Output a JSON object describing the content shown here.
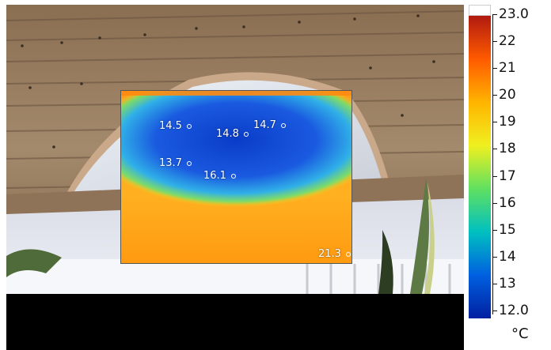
{
  "thermal_spots": [
    {
      "value": "14.5"
    },
    {
      "value": "14.8"
    },
    {
      "value": "14.7"
    },
    {
      "value": "13.7"
    },
    {
      "value": "16.1"
    },
    {
      "value": "21.3"
    }
  ],
  "scale": {
    "max_label": "23.0",
    "min_label": "12.0",
    "ticks": [
      "22",
      "21",
      "20",
      "19",
      "18",
      "17",
      "16",
      "15",
      "14",
      "13"
    ],
    "unit": "°C",
    "gradient_colors": [
      "#b01a10",
      "#ff5a00",
      "#ffb400",
      "#f0f020",
      "#60e060",
      "#00c0c0",
      "#0060e0",
      "#0020a0"
    ]
  }
}
